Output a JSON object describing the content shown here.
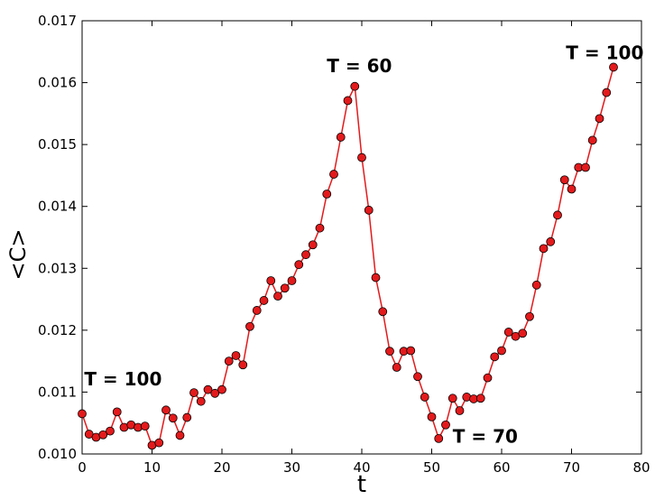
{
  "chart_data": {
    "type": "line",
    "title": "",
    "xlabel": "t",
    "ylabel": "<C>",
    "xlim": [
      0,
      80
    ],
    "ylim": [
      0.01,
      0.017
    ],
    "xticks": [
      "0",
      "10",
      "20",
      "30",
      "40",
      "50",
      "60",
      "70",
      "80"
    ],
    "yticks": [
      "0.010",
      "0.011",
      "0.012",
      "0.013",
      "0.014",
      "0.015",
      "0.016",
      "0.017"
    ],
    "grid": false,
    "line_color": "#e31a1c",
    "marker_color": "#e31a1c",
    "series": [
      {
        "x": [
          0,
          1,
          2,
          3,
          4,
          5,
          6,
          7,
          8,
          9,
          10,
          11,
          12,
          13,
          14,
          15,
          16,
          17,
          18,
          19,
          20,
          21,
          22,
          23,
          24,
          25,
          26,
          27,
          28,
          29,
          30,
          31,
          32,
          33,
          34,
          35,
          36,
          37,
          38,
          39,
          40,
          41,
          42,
          43,
          44,
          45,
          46,
          47,
          48,
          49,
          50,
          51,
          52,
          53,
          54,
          55,
          56,
          57,
          58,
          59,
          60,
          61,
          62,
          63,
          64,
          65,
          66,
          67,
          68,
          69,
          70,
          71,
          72,
          73,
          74,
          75,
          76
        ],
        "y": [
          0.01065,
          0.01032,
          0.01027,
          0.01031,
          0.01037,
          0.01068,
          0.01043,
          0.01047,
          0.01043,
          0.01045,
          0.01014,
          0.01018,
          0.01071,
          0.01058,
          0.0103,
          0.01059,
          0.01099,
          0.01085,
          0.01104,
          0.01098,
          0.01104,
          0.0115,
          0.01159,
          0.01144,
          0.01206,
          0.01232,
          0.01248,
          0.0128,
          0.01255,
          0.01268,
          0.0128,
          0.01306,
          0.01322,
          0.01338,
          0.01365,
          0.0142,
          0.01452,
          0.01512,
          0.01571,
          0.01594,
          0.01479,
          0.01394,
          0.01285,
          0.0123,
          0.01166,
          0.0114,
          0.01166,
          0.01167,
          0.01125,
          0.01092,
          0.0106,
          0.01025,
          0.01047,
          0.0109,
          0.0107,
          0.01092,
          0.01089,
          0.0109,
          0.01123,
          0.01157,
          0.01167,
          0.01197,
          0.0119,
          0.01195,
          0.01222,
          0.01273,
          0.01332,
          0.01343,
          0.01386,
          0.01443,
          0.01428,
          0.01463,
          0.01463,
          0.01507,
          0.01542,
          0.01584,
          0.01625
        ]
      }
    ],
    "annotations": [
      {
        "text": "T = 100",
        "x": 0.3,
        "y": 0.01111
      },
      {
        "text": "T = 60",
        "x": 35.0,
        "y": 0.01617
      },
      {
        "text": "T = 70",
        "x": 53.0,
        "y": 0.01018
      },
      {
        "text": "T = 100",
        "x": 69.2,
        "y": 0.01638
      }
    ]
  }
}
